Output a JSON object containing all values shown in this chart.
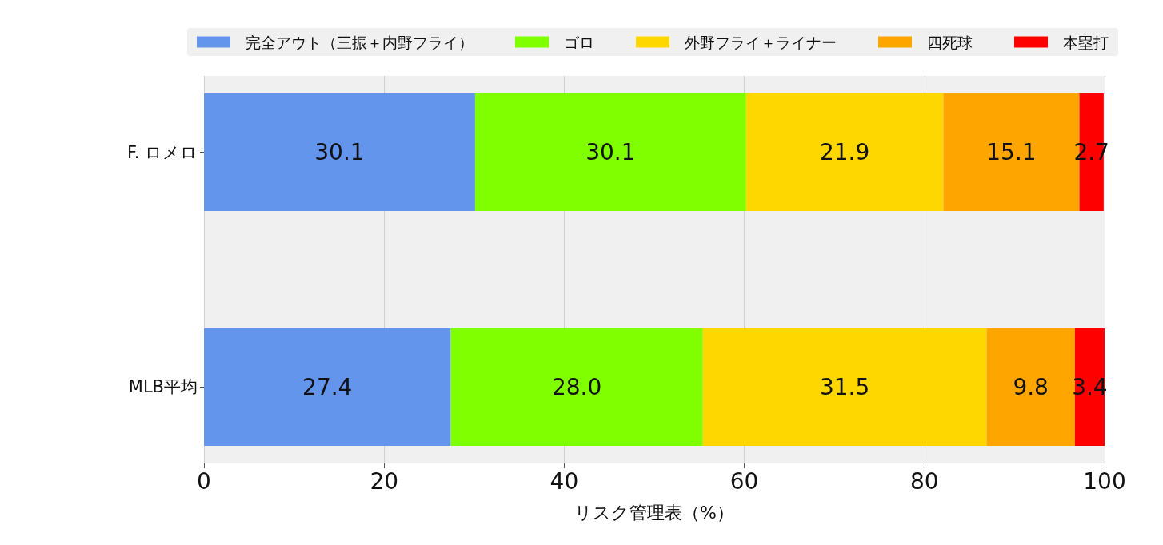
{
  "chart_data": {
    "type": "bar",
    "orientation": "horizontal",
    "stacked": true,
    "categories": [
      "F. ロメロ",
      "MLB平均"
    ],
    "series": [
      {
        "name": "完全アウト（三振＋内野フライ）",
        "color": "#6495ed",
        "values": [
          30.1,
          27.4
        ],
        "value_labels": [
          "30.1",
          "27.4"
        ]
      },
      {
        "name": "ゴロ",
        "color": "#7fff00",
        "values": [
          30.1,
          28.0
        ],
        "value_labels": [
          "30.1",
          "28.0"
        ]
      },
      {
        "name": "外野フライ＋ライナー",
        "color": "#ffd700",
        "values": [
          21.9,
          31.5
        ],
        "value_labels": [
          "21.9",
          "31.5"
        ]
      },
      {
        "name": "四死球",
        "color": "#ffa500",
        "values": [
          15.1,
          9.8
        ],
        "value_labels": [
          "15.1",
          "9.8"
        ]
      },
      {
        "name": "本塁打",
        "color": "#ff0000",
        "values": [
          2.7,
          3.4
        ],
        "value_labels": [
          "2.7",
          "3.4"
        ]
      }
    ],
    "xlabel": "リスク管理表（%）",
    "xlim": [
      0,
      100
    ],
    "xticks": [
      0,
      20,
      40,
      60,
      80,
      100
    ],
    "grid": "x",
    "legend": "top"
  }
}
